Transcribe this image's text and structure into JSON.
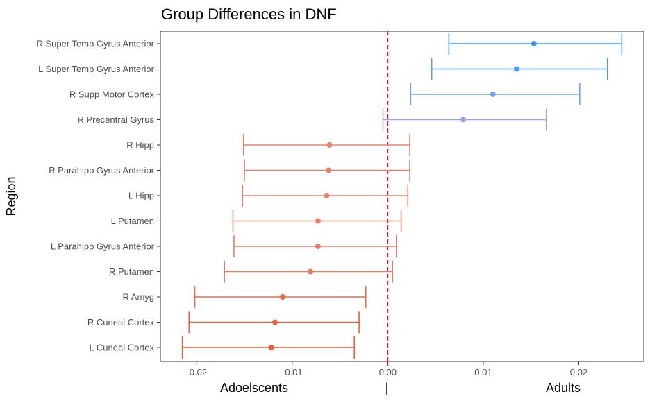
{
  "chart_data": {
    "type": "errorbar",
    "title": "Group Differences in DNF",
    "ylabel": "Region",
    "xlabel": "",
    "xlim": [
      -0.0238,
      0.0268
    ],
    "xticks": [
      -0.02,
      -0.01,
      0.0,
      0.01,
      0.02
    ],
    "xtick_labels": [
      "-0.02",
      "-0.01",
      "0.00",
      "0.01",
      "0.02"
    ],
    "reference_line": {
      "x": 0,
      "style": "dashed",
      "color": "#e31a1c"
    },
    "group_labels": {
      "left": "Adoelscents",
      "center": "|",
      "right": "Adults"
    },
    "grid": false,
    "legend": "none",
    "color_low": "#f15a3b",
    "color_high": "#3f99f0",
    "points": [
      {
        "region": "R Super Temp Gyrus Anterior",
        "estimate": 0.0153,
        "lower": 0.0064,
        "upper": 0.0245,
        "color": "#3f99f0"
      },
      {
        "region": "L Super Temp Gyrus Anterior",
        "estimate": 0.0135,
        "lower": 0.0046,
        "upper": 0.023,
        "color": "#4e9ced"
      },
      {
        "region": "R Supp Motor Cortex",
        "estimate": 0.011,
        "lower": 0.0024,
        "upper": 0.0201,
        "color": "#6ea4ea"
      },
      {
        "region": "R Precentral Gyrus",
        "estimate": 0.0079,
        "lower": -0.0005,
        "upper": 0.0166,
        "color": "#94a8e4"
      },
      {
        "region": "R Hipp",
        "estimate": -0.0061,
        "lower": -0.0151,
        "upper": 0.0023,
        "color": "#e6846b"
      },
      {
        "region": "R Parahipp Gyrus Anterior",
        "estimate": -0.0062,
        "lower": -0.015,
        "upper": 0.0023,
        "color": "#e6846b"
      },
      {
        "region": "L Hipp",
        "estimate": -0.0064,
        "lower": -0.0152,
        "upper": 0.0021,
        "color": "#e7826a"
      },
      {
        "region": "L Putamen",
        "estimate": -0.0073,
        "lower": -0.0162,
        "upper": 0.0014,
        "color": "#e97d66"
      },
      {
        "region": "L Parahipp Gyrus Anterior",
        "estimate": -0.0073,
        "lower": -0.0161,
        "upper": 0.0009,
        "color": "#e97d66"
      },
      {
        "region": "R Putamen",
        "estimate": -0.0081,
        "lower": -0.0171,
        "upper": 0.0005,
        "color": "#ea7860"
      },
      {
        "region": "R Amyg",
        "estimate": -0.011,
        "lower": -0.0202,
        "upper": -0.0023,
        "color": "#ee6547"
      },
      {
        "region": "R Cuneal Cortex",
        "estimate": -0.0118,
        "lower": -0.0208,
        "upper": -0.003,
        "color": "#f05e40"
      },
      {
        "region": "L Cuneal Cortex",
        "estimate": -0.0122,
        "lower": -0.0215,
        "upper": -0.0035,
        "color": "#f15a3b"
      }
    ]
  }
}
